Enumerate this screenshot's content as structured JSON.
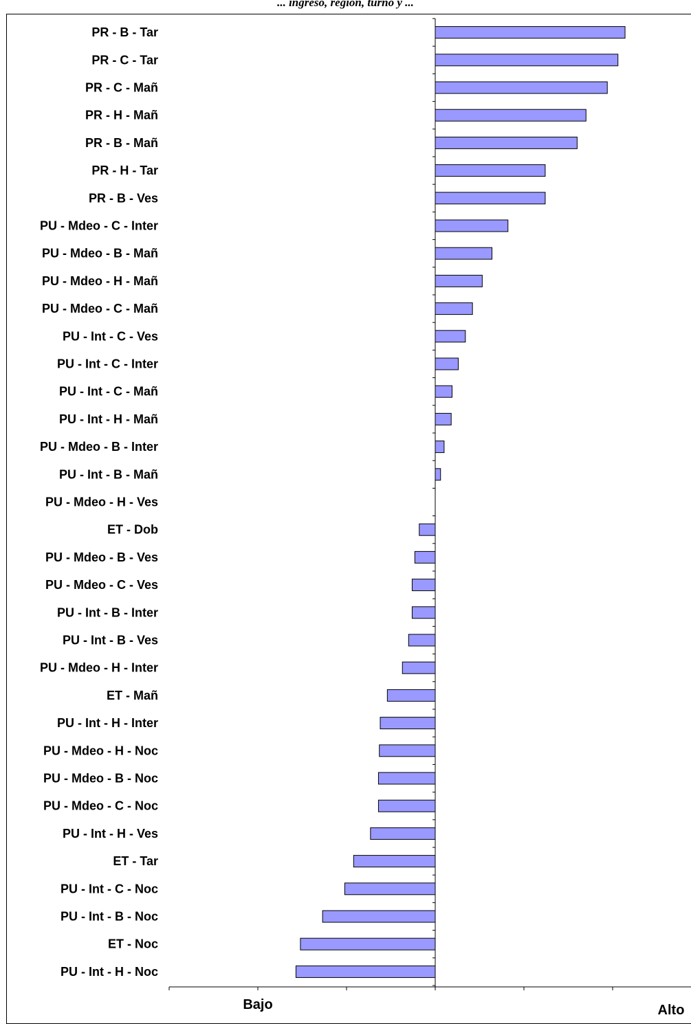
{
  "caption": "... ingreso, región, turno y ...",
  "chart_data": {
    "type": "bar",
    "orientation": "horizontal",
    "title": "",
    "xlabel": "",
    "ylabel": "",
    "x_low_label": "Bajo",
    "x_high_label": "Alto",
    "xlim": [
      -3,
      3
    ],
    "bar_color": "#9999ff",
    "categories": [
      "PR - B - Tar",
      "PR - C - Tar",
      "PR - C - Mañ",
      "PR - H - Mañ",
      "PR - B - Mañ",
      "PR - H - Tar",
      "PR - B - Ves",
      "PU - Mdeo - C - Inter",
      "PU - Mdeo - B - Mañ",
      "PU - Mdeo - H - Mañ",
      "PU - Mdeo - C - Mañ",
      "PU - Int - C - Ves",
      "PU - Int - C - Inter",
      "PU - Int - C - Mañ",
      "PU - Int - H - Mañ",
      "PU - Mdeo - B - Inter",
      "PU - Int - B - Mañ",
      "PU - Mdeo - H - Ves",
      "ET - Dob",
      "PU - Mdeo - B - Ves",
      "PU - Mdeo - C - Ves",
      "PU - Int - B - Inter",
      "PU - Int - B - Ves",
      "PU - Mdeo - H - Inter",
      "ET - Mañ",
      "PU - Int - H - Inter",
      "PU - Mdeo - H - Noc",
      "PU - Mdeo - B - Noc",
      "PU - Mdeo - C - Noc",
      "PU - Int - H - Ves",
      "ET - Tar",
      "PU - Int - C - Noc",
      "PU - Int - B - Noc",
      "ET - Noc",
      "PU - Int - H - Noc"
    ],
    "values": [
      2.14,
      2.06,
      1.94,
      1.7,
      1.6,
      1.24,
      1.24,
      0.82,
      0.64,
      0.53,
      0.42,
      0.34,
      0.26,
      0.19,
      0.18,
      0.1,
      0.06,
      0.0,
      -0.18,
      -0.23,
      -0.26,
      -0.26,
      -0.3,
      -0.37,
      -0.54,
      -0.62,
      -0.63,
      -0.64,
      -0.64,
      -0.73,
      -0.92,
      -1.02,
      -1.27,
      -1.52,
      -1.57
    ]
  }
}
